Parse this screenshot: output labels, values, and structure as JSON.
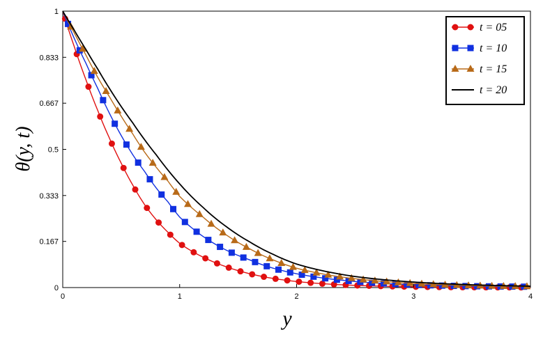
{
  "chart_data": {
    "type": "line",
    "xlabel": "y",
    "ylabel": "θ(y, t)",
    "xlim": [
      0,
      4
    ],
    "ylim": [
      0,
      1
    ],
    "xticks": [
      "0",
      "1",
      "2",
      "3",
      "4"
    ],
    "yticks": [
      "0",
      "0.167",
      "0.333",
      "0.5",
      "0.667",
      "0.833",
      "1"
    ],
    "grid": false,
    "legend_position": "top-right",
    "series": [
      {
        "name": "t = 05",
        "color": "#e01010",
        "marker": "circle",
        "x": [
          0,
          0.1,
          0.2,
          0.3,
          0.4,
          0.5,
          0.6,
          0.7,
          0.8,
          0.9,
          1.0,
          1.2,
          1.4,
          1.6,
          1.8,
          2.0,
          2.5,
          3.0,
          3.5,
          4.0
        ],
        "y": [
          1,
          0.87,
          0.75,
          0.64,
          0.54,
          0.45,
          0.37,
          0.3,
          0.245,
          0.2,
          0.16,
          0.11,
          0.075,
          0.05,
          0.033,
          0.022,
          0.008,
          0.003,
          0.001,
          0.0005
        ]
      },
      {
        "name": "t = 10",
        "color": "#1030e0",
        "marker": "square",
        "x": [
          0,
          0.1,
          0.2,
          0.3,
          0.4,
          0.5,
          0.6,
          0.7,
          0.8,
          0.9,
          1.0,
          1.2,
          1.4,
          1.6,
          1.8,
          2.0,
          2.5,
          3.0,
          3.5,
          4.0
        ],
        "y": [
          1,
          0.9,
          0.81,
          0.72,
          0.63,
          0.55,
          0.48,
          0.42,
          0.36,
          0.31,
          0.255,
          0.185,
          0.135,
          0.1,
          0.07,
          0.05,
          0.022,
          0.01,
          0.005,
          0.003
        ]
      },
      {
        "name": "t = 15",
        "color": "#b86a18",
        "marker": "triangle",
        "x": [
          0,
          0.1,
          0.2,
          0.3,
          0.4,
          0.5,
          0.6,
          0.7,
          0.8,
          0.9,
          1.0,
          1.2,
          1.4,
          1.6,
          1.8,
          2.0,
          2.5,
          3.0,
          3.5,
          4.0
        ],
        "y": [
          1,
          0.92,
          0.84,
          0.76,
          0.69,
          0.62,
          0.555,
          0.49,
          0.435,
          0.385,
          0.33,
          0.255,
          0.19,
          0.14,
          0.1,
          0.07,
          0.032,
          0.015,
          0.007,
          0.004
        ]
      },
      {
        "name": "t = 20",
        "color": "#000000",
        "marker": "none",
        "x": [
          0,
          0.1,
          0.2,
          0.3,
          0.4,
          0.5,
          0.6,
          0.7,
          0.8,
          0.9,
          1.0,
          1.2,
          1.4,
          1.6,
          1.8,
          2.0,
          2.5,
          3.0,
          3.5,
          4.0
        ],
        "y": [
          1,
          0.93,
          0.86,
          0.79,
          0.72,
          0.655,
          0.595,
          0.535,
          0.48,
          0.425,
          0.375,
          0.29,
          0.22,
          0.165,
          0.12,
          0.085,
          0.04,
          0.02,
          0.01,
          0.005
        ]
      }
    ]
  }
}
